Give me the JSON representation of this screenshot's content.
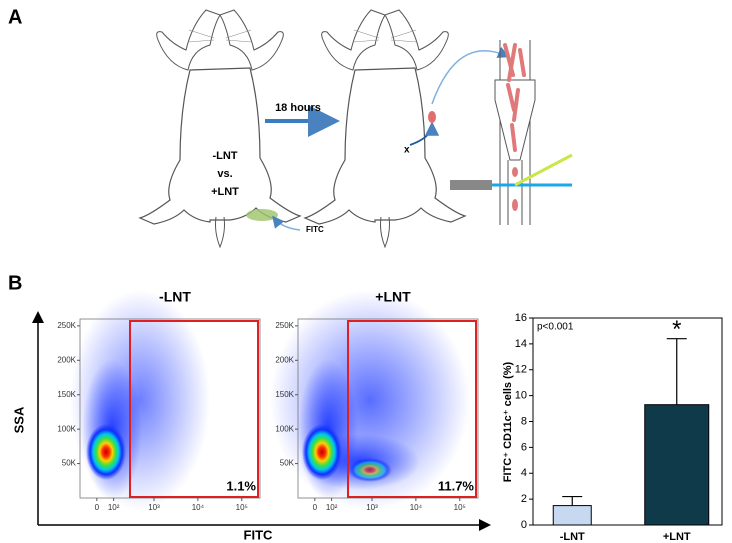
{
  "panel_a": {
    "label": "A",
    "interval": "18 hours",
    "groups": [
      "-LNT",
      "vs.",
      "+LNT"
    ],
    "dye": "FITC"
  },
  "panel_b": {
    "label": "B",
    "x_label": "FITC",
    "y_label": "SSA",
    "plots": [
      {
        "title": "-LNT",
        "gate_label": "1.1%"
      },
      {
        "title": "+LNT",
        "gate_label": "11.7%"
      }
    ],
    "ylim": [
      0,
      260000
    ],
    "yticks": [
      {
        "value": 50000,
        "label": "50K"
      },
      {
        "value": 100000,
        "label": "100K"
      },
      {
        "value": 150000,
        "label": "150K"
      },
      {
        "value": 200000,
        "label": "200K"
      },
      {
        "value": 250000,
        "label": "250K"
      }
    ],
    "xlim": [
      -100,
      260000
    ],
    "xticks": [
      0,
      {
        "value": 100,
        "label": "10²"
      },
      {
        "value": 1000,
        "label": "10³"
      },
      {
        "value": 10000,
        "label": "10⁴"
      },
      {
        "value": 100000,
        "label": "10⁵"
      }
    ]
  },
  "chart_data": {
    "type": "bar",
    "categories": [
      "-LNT",
      "+LNT"
    ],
    "values": [
      1.5,
      9.3
    ],
    "errors": [
      0.7,
      5.1
    ],
    "colors": [
      "#c6d9f1",
      "#0e3a4a"
    ],
    "ylabel": "FITC⁺ CD11c⁺ cells (%)",
    "annotation": "p<0.001",
    "significance": "*",
    "ylim": [
      0,
      16
    ],
    "yticks": [
      0,
      2,
      4,
      6,
      8,
      10,
      12,
      14,
      16
    ]
  }
}
